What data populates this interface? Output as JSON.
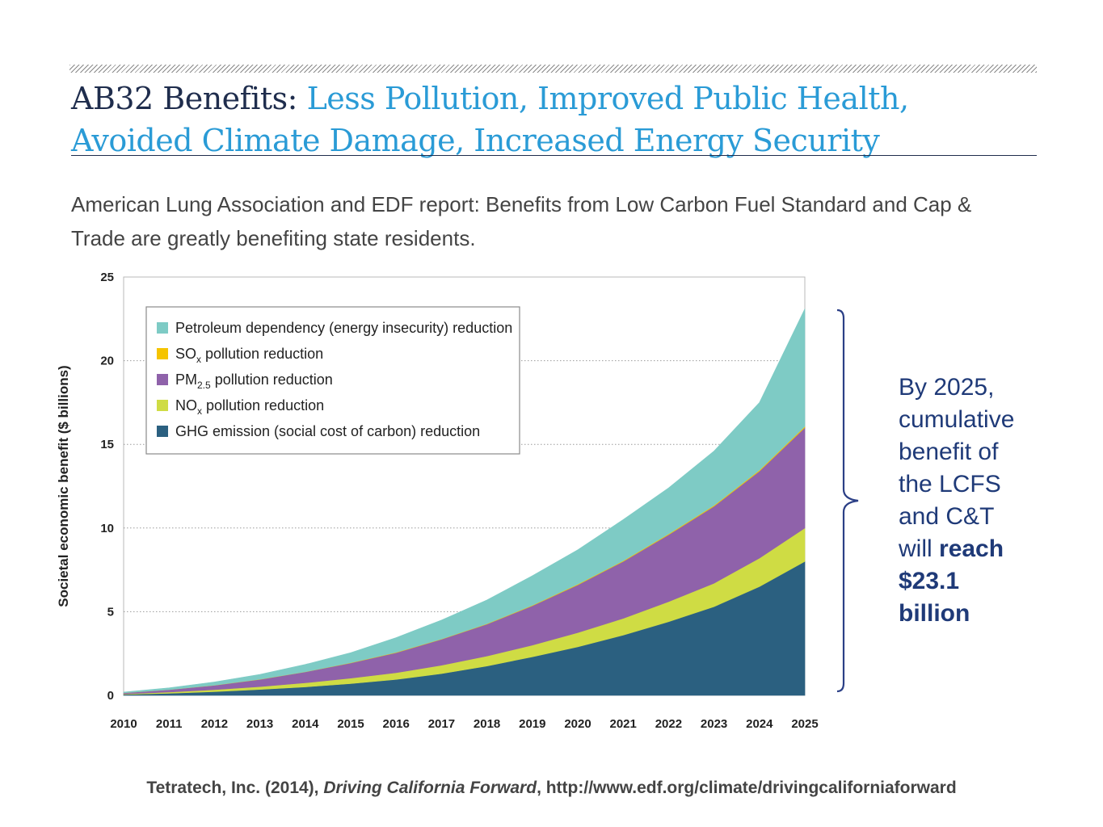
{
  "slide": {
    "title_main": "AB32 Benefits:",
    "title_sub": "Less Pollution, Improved Public Health, Avoided Climate Damage, Increased Energy Security",
    "intro": "American Lung Association and EDF report: Benefits from Low Carbon Fuel Standard and Cap & Trade are greatly benefiting state residents.",
    "annotation": {
      "text_plain": "By 2025, cumulative benefit of the LCFS and C&T will",
      "text_bold": "reach $23.1 billion"
    },
    "citation": {
      "prefix": "Tetratech, Inc. (2014),",
      "italic": "Driving California Forward",
      "suffix": ", http://www.edf.org/climate/drivingcaliforniaforward"
    }
  },
  "chart_data": {
    "type": "area",
    "stacked": true,
    "title": "",
    "xlabel": "",
    "ylabel": "Societal economic benefit ($ billions)",
    "ylim": [
      0,
      25
    ],
    "yticks": [
      0,
      5,
      10,
      15,
      20,
      25
    ],
    "grid": "horizontal dotted",
    "legend_position": "top-left",
    "x": [
      "2010",
      "2011",
      "2012",
      "2013",
      "2014",
      "2015",
      "2016",
      "2017",
      "2018",
      "2019",
      "2020",
      "2021",
      "2022",
      "2023",
      "2024",
      "2025"
    ],
    "series": [
      {
        "name": "GHG emission (social cost of carbon) reduction",
        "color": "#2b6080",
        "values": [
          0.05,
          0.12,
          0.22,
          0.35,
          0.5,
          0.7,
          0.95,
          1.3,
          1.75,
          2.3,
          2.9,
          3.6,
          4.4,
          5.3,
          6.5,
          8.0
        ]
      },
      {
        "name": "NOx pollution reduction",
        "color": "#cfdc44",
        "values": [
          0.03,
          0.08,
          0.12,
          0.17,
          0.25,
          0.33,
          0.4,
          0.5,
          0.6,
          0.7,
          0.85,
          1.0,
          1.2,
          1.4,
          1.7,
          2.0
        ]
      },
      {
        "name": "PM2.5 pollution reduction",
        "color": "#8f62aa",
        "values": [
          0.07,
          0.14,
          0.26,
          0.43,
          0.65,
          0.9,
          1.2,
          1.55,
          1.9,
          2.35,
          2.85,
          3.4,
          4.0,
          4.6,
          5.2,
          6.0
        ]
      },
      {
        "name": "SOx pollution reduction",
        "color": "#f5c400",
        "values": [
          0.0,
          0.0,
          0.01,
          0.01,
          0.01,
          0.02,
          0.02,
          0.02,
          0.03,
          0.03,
          0.04,
          0.04,
          0.05,
          0.05,
          0.06,
          0.07
        ]
      },
      {
        "name": "Petroleum dependency (energy insecurity) reduction",
        "color": "#7ecbc5",
        "values": [
          0.05,
          0.11,
          0.19,
          0.29,
          0.44,
          0.6,
          0.88,
          1.13,
          1.42,
          1.77,
          2.06,
          2.46,
          2.75,
          3.25,
          4.04,
          7.03
        ]
      }
    ],
    "legend": [
      {
        "name": "Petroleum dependency (energy insecurity) reduction",
        "color": "#7ecbc5",
        "main": "Petroleum dependency (energy insecurity) reduction",
        "sub": "",
        "rest": ""
      },
      {
        "name": "SOx pollution reduction",
        "color": "#f5c400",
        "main": "SO",
        "sub": "x",
        "rest": " pollution reduction"
      },
      {
        "name": "PM2.5 pollution reduction",
        "color": "#8f62aa",
        "main": "PM",
        "sub": "2.5",
        "rest": " pollution reduction"
      },
      {
        "name": "NOx pollution reduction",
        "color": "#cfdc44",
        "main": "NO",
        "sub": "x",
        "rest": " pollution reduction"
      },
      {
        "name": "GHG emission (social cost of carbon) reduction",
        "color": "#2b6080",
        "main": "GHG emission (social cost of carbon) reduction",
        "sub": "",
        "rest": ""
      }
    ],
    "annotation_total_2025": 23.1
  }
}
